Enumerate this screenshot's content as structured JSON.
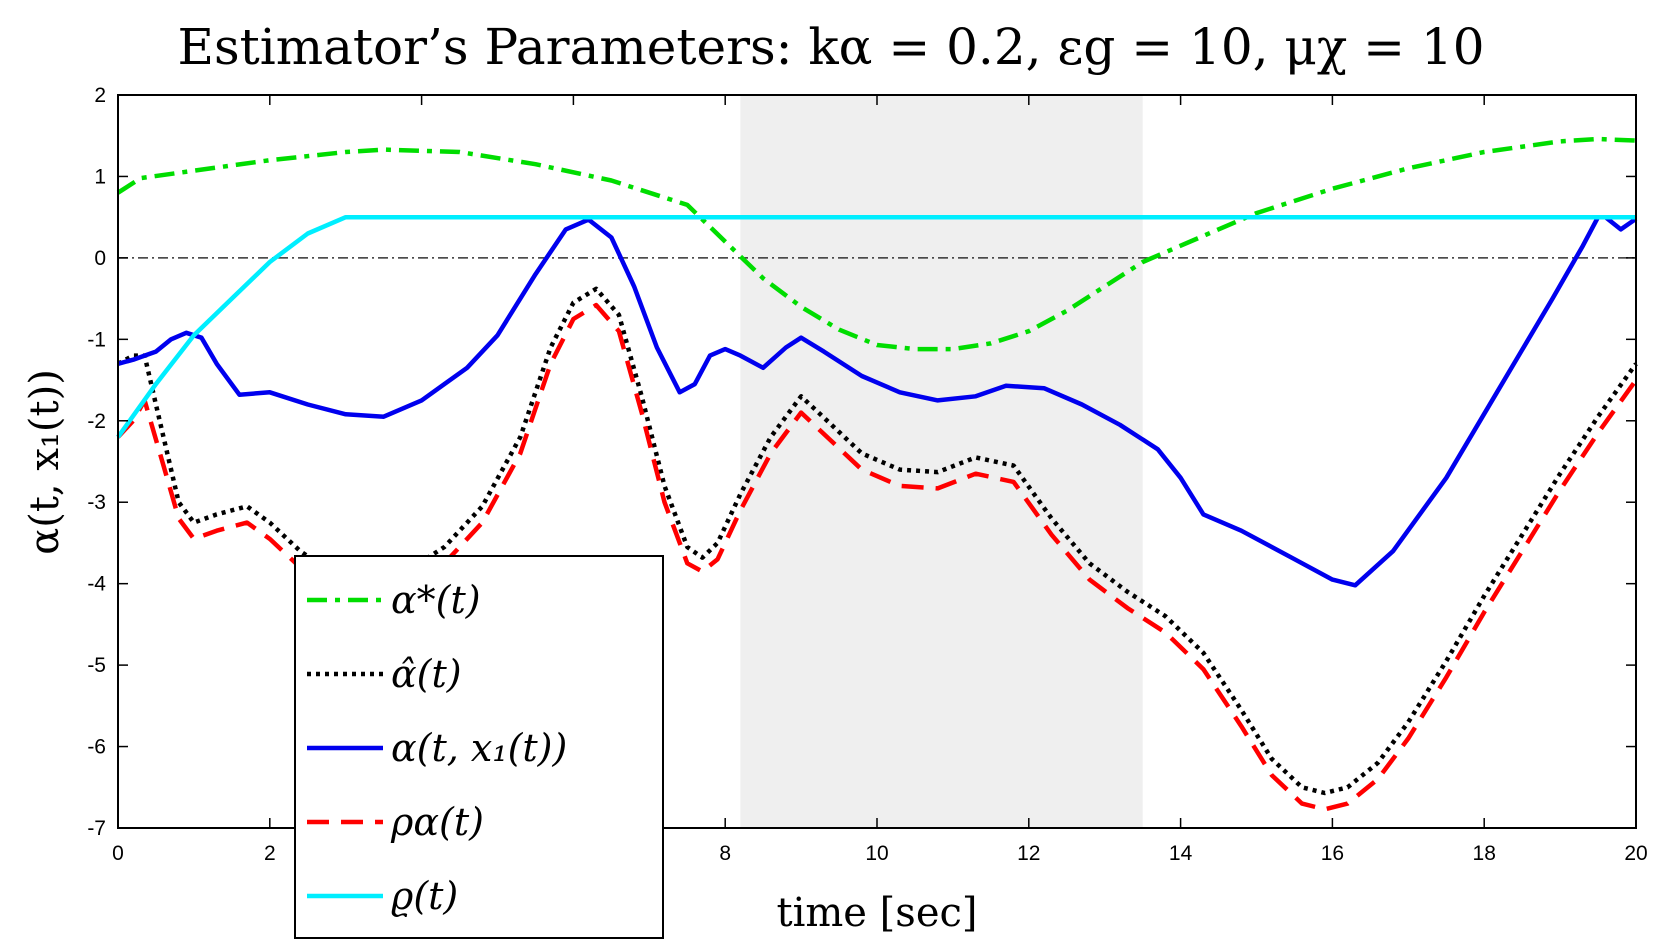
{
  "chart_data": {
    "type": "line",
    "title": "Estimator’s Parameters: kα = 0.2, εg = 10, μχ = 10",
    "xlabel": "time [sec]",
    "ylabel": "α(t, x₁(t))",
    "xlim": [
      0,
      20
    ],
    "ylim": [
      -7,
      2
    ],
    "xticks": [
      0,
      2,
      4,
      6,
      8,
      10,
      12,
      14,
      16,
      18,
      20
    ],
    "yticks": [
      2,
      1,
      0,
      -1,
      -2,
      -3,
      -4,
      -5,
      -6,
      -7
    ],
    "shaded_region": [
      8.2,
      13.5
    ],
    "zero_line": 0,
    "legend_position": "bottom-left",
    "series": [
      {
        "name": "α*(t)",
        "color": "#00dd00",
        "dash": "dashdot",
        "x": [
          0,
          0.3,
          1,
          2,
          3,
          3.5,
          4.5,
          5.5,
          6.5,
          7.5,
          8,
          8.5,
          9,
          9.5,
          10,
          10.5,
          11,
          11.5,
          12,
          12.5,
          13,
          13.5,
          14,
          15,
          16,
          17,
          18,
          19,
          19.5,
          20
        ],
        "y": [
          0.8,
          0.98,
          1.07,
          1.2,
          1.3,
          1.33,
          1.3,
          1.15,
          0.95,
          0.65,
          0.2,
          -0.25,
          -0.6,
          -0.88,
          -1.07,
          -1.12,
          -1.12,
          -1.05,
          -0.9,
          -0.65,
          -0.35,
          -0.05,
          0.15,
          0.55,
          0.85,
          1.1,
          1.3,
          1.43,
          1.46,
          1.44
        ]
      },
      {
        "name": "α̂(t)",
        "color": "#000000",
        "dash": "dotted",
        "x": [
          0,
          0.2,
          0.35,
          0.6,
          0.8,
          1,
          1.3,
          1.7,
          2,
          2.4,
          2.8,
          3.3,
          3.8,
          4.3,
          4.8,
          5.3,
          5.7,
          6,
          6.3,
          6.6,
          6.9,
          7.2,
          7.5,
          7.7,
          7.9,
          8.2,
          8.6,
          9,
          9.4,
          9.8,
          10.3,
          10.8,
          11.3,
          11.8,
          12.3,
          12.8,
          13.3,
          13.8,
          14.3,
          14.8,
          15.2,
          15.6,
          15.9,
          16.2,
          16.6,
          17,
          17.5,
          18,
          18.5,
          19,
          19.5,
          20
        ],
        "y": [
          -1.3,
          -1.2,
          -1.2,
          -2.2,
          -3,
          -3.25,
          -3.15,
          -3.05,
          -3.25,
          -3.6,
          -3.85,
          -3.95,
          -3.85,
          -3.55,
          -3.05,
          -2.2,
          -1.1,
          -0.55,
          -0.38,
          -0.7,
          -1.7,
          -2.8,
          -3.55,
          -3.68,
          -3.5,
          -2.9,
          -2.2,
          -1.7,
          -2.05,
          -2.4,
          -2.6,
          -2.63,
          -2.45,
          -2.55,
          -3.2,
          -3.75,
          -4.1,
          -4.4,
          -4.85,
          -5.55,
          -6.15,
          -6.5,
          -6.57,
          -6.5,
          -6.2,
          -5.7,
          -4.95,
          -4.15,
          -3.4,
          -2.65,
          -1.95,
          -1.3
        ]
      },
      {
        "name": "α(t, x₁(t))",
        "color": "#0000ee",
        "dash": "solid",
        "x": [
          0,
          0.2,
          0.35,
          0.5,
          0.7,
          0.9,
          1.1,
          1.3,
          1.6,
          2,
          2.5,
          3,
          3.5,
          4,
          4.6,
          5,
          5.5,
          5.9,
          6.2,
          6.5,
          6.8,
          7.1,
          7.4,
          7.6,
          7.8,
          8,
          8.2,
          8.5,
          8.8,
          9,
          9.3,
          9.8,
          10.3,
          10.8,
          11.3,
          11.7,
          12.2,
          12.7,
          13.2,
          13.7,
          14,
          14.3,
          14.8,
          15.5,
          16,
          16.3,
          16.8,
          17.5,
          18.2,
          18.9,
          19.3,
          19.5,
          19.6,
          19.8,
          20
        ],
        "y": [
          -1.3,
          -1.25,
          -1.2,
          -1.15,
          -1.0,
          -0.92,
          -0.98,
          -1.3,
          -1.68,
          -1.65,
          -1.8,
          -1.92,
          -1.95,
          -1.75,
          -1.35,
          -0.95,
          -0.2,
          0.35,
          0.47,
          0.25,
          -0.35,
          -1.1,
          -1.65,
          -1.55,
          -1.2,
          -1.12,
          -1.2,
          -1.35,
          -1.1,
          -0.98,
          -1.15,
          -1.45,
          -1.65,
          -1.75,
          -1.7,
          -1.57,
          -1.6,
          -1.8,
          -2.05,
          -2.35,
          -2.7,
          -3.15,
          -3.35,
          -3.7,
          -3.95,
          -4.02,
          -3.6,
          -2.7,
          -1.6,
          -0.5,
          0.15,
          0.5,
          0.5,
          0.35,
          0.48
        ]
      },
      {
        "name": "ρα(t)",
        "color": "#ff0000",
        "dash": "dashed",
        "x": [
          0,
          0.2,
          0.35,
          0.6,
          0.8,
          1,
          1.3,
          1.7,
          2,
          2.4,
          2.8,
          3.3,
          3.8,
          4.3,
          4.8,
          5.3,
          5.7,
          6,
          6.3,
          6.6,
          6.9,
          7.2,
          7.5,
          7.7,
          7.9,
          8.2,
          8.6,
          9,
          9.4,
          9.8,
          10.3,
          10.8,
          11.3,
          11.8,
          12.3,
          12.8,
          13.3,
          13.8,
          14.3,
          14.8,
          15.2,
          15.6,
          15.9,
          16.2,
          16.6,
          17,
          17.5,
          18,
          18.5,
          19,
          19.5,
          20
        ],
        "y": [
          -2.2,
          -2.0,
          -1.75,
          -2.55,
          -3.2,
          -3.45,
          -3.35,
          -3.25,
          -3.45,
          -3.8,
          -4.05,
          -4.15,
          -4.05,
          -3.75,
          -3.25,
          -2.4,
          -1.3,
          -0.75,
          -0.58,
          -0.9,
          -1.9,
          -3.0,
          -3.75,
          -3.85,
          -3.7,
          -3.1,
          -2.4,
          -1.9,
          -2.25,
          -2.6,
          -2.8,
          -2.83,
          -2.65,
          -2.75,
          -3.4,
          -3.95,
          -4.3,
          -4.6,
          -5.05,
          -5.75,
          -6.35,
          -6.7,
          -6.77,
          -6.7,
          -6.4,
          -5.9,
          -5.15,
          -4.35,
          -3.6,
          -2.85,
          -2.15,
          -1.5
        ]
      },
      {
        "name": "ϱ(t)",
        "color": "#00eeff",
        "dash": "solid",
        "x": [
          0,
          0.5,
          1,
          1.5,
          2,
          2.5,
          3,
          20
        ],
        "y": [
          -2.2,
          -1.55,
          -0.95,
          -0.5,
          -0.05,
          0.3,
          0.5,
          0.5
        ]
      }
    ]
  }
}
